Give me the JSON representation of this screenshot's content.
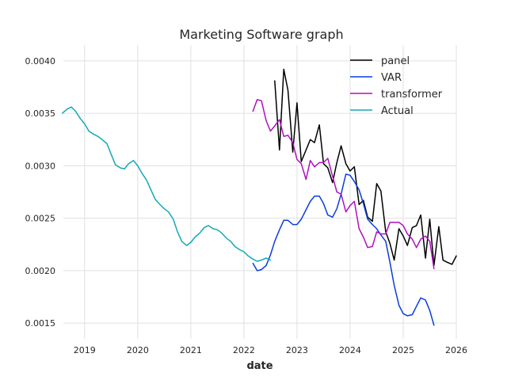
{
  "chart_data": {
    "type": "line",
    "title": "Marketing Software graph",
    "xlabel": "date",
    "ylabel": "",
    "xlim": [
      2018.6,
      2026.0
    ],
    "ylim": [
      0.00135,
      0.00415
    ],
    "xticks": [
      2019,
      2020,
      2021,
      2022,
      2023,
      2024,
      2025,
      2026
    ],
    "xtick_labels": [
      "2019",
      "2020",
      "2021",
      "2022",
      "2023",
      "2024",
      "2025",
      "2026"
    ],
    "yticks": [
      0.0015,
      0.002,
      0.0025,
      0.003,
      0.0035,
      0.004
    ],
    "ytick_labels": [
      "0.0015",
      "0.0020",
      "0.0025",
      "0.0030",
      "0.0035",
      "0.0040"
    ],
    "grid": true,
    "legend_position": "top-right",
    "series": [
      {
        "name": "panel",
        "color": "#000000",
        "x": [
          2022.58,
          2022.67,
          2022.75,
          2022.83,
          2022.92,
          2023.0,
          2023.08,
          2023.17,
          2023.25,
          2023.33,
          2023.42,
          2023.5,
          2023.58,
          2023.67,
          2023.75,
          2023.83,
          2023.92,
          2024.0,
          2024.08,
          2024.17,
          2024.25,
          2024.33,
          2024.42,
          2024.5,
          2024.58,
          2024.67,
          2024.75,
          2024.83,
          2024.92,
          2025.0,
          2025.08,
          2025.17,
          2025.25,
          2025.33,
          2025.42,
          2025.5,
          2025.58,
          2025.67,
          2025.75,
          2025.83,
          2025.92,
          2026.0
        ],
        "y": [
          0.00381,
          0.00315,
          0.00392,
          0.00372,
          0.00313,
          0.0036,
          0.00304,
          0.00315,
          0.00325,
          0.00322,
          0.00339,
          0.00302,
          0.00298,
          0.00284,
          0.00303,
          0.00319,
          0.00302,
          0.00295,
          0.00299,
          0.00263,
          0.00267,
          0.00251,
          0.00247,
          0.00283,
          0.00276,
          0.00237,
          0.00226,
          0.0021,
          0.0024,
          0.00233,
          0.00224,
          0.00241,
          0.00243,
          0.00253,
          0.00212,
          0.00249,
          0.00205,
          0.00242,
          0.0021,
          0.00208,
          0.00206,
          0.00214
        ]
      },
      {
        "name": "VAR",
        "color": "#0a3de0",
        "x": [
          2022.17,
          2022.25,
          2022.33,
          2022.42,
          2022.5,
          2022.58,
          2022.67,
          2022.75,
          2022.83,
          2022.92,
          2023.0,
          2023.08,
          2023.17,
          2023.25,
          2023.33,
          2023.42,
          2023.5,
          2023.58,
          2023.67,
          2023.75,
          2023.83,
          2023.92,
          2024.0,
          2024.08,
          2024.17,
          2024.25,
          2024.33,
          2024.42,
          2024.5,
          2024.58,
          2024.67,
          2024.75,
          2024.83,
          2024.92,
          2025.0,
          2025.08,
          2025.17,
          2025.25,
          2025.33,
          2025.42,
          2025.5,
          2025.58
        ],
        "y": [
          0.00207,
          0.002,
          0.00201,
          0.00205,
          0.00215,
          0.00228,
          0.00239,
          0.00248,
          0.00248,
          0.00244,
          0.00244,
          0.00249,
          0.00258,
          0.00266,
          0.00271,
          0.00271,
          0.00264,
          0.00253,
          0.00251,
          0.00259,
          0.00273,
          0.00292,
          0.00291,
          0.00285,
          0.00277,
          0.00264,
          0.00249,
          0.00244,
          0.0024,
          0.00234,
          0.00228,
          0.00208,
          0.00186,
          0.00167,
          0.00159,
          0.00157,
          0.00158,
          0.00166,
          0.00174,
          0.00172,
          0.00162,
          0.00148
        ]
      },
      {
        "name": "transformer",
        "color": "#b00fc0",
        "x": [
          2022.17,
          2022.25,
          2022.33,
          2022.42,
          2022.5,
          2022.58,
          2022.67,
          2022.75,
          2022.83,
          2022.92,
          2023.0,
          2023.08,
          2023.17,
          2023.25,
          2023.33,
          2023.42,
          2023.5,
          2023.58,
          2023.67,
          2023.75,
          2023.83,
          2023.92,
          2024.0,
          2024.08,
          2024.17,
          2024.25,
          2024.33,
          2024.42,
          2024.5,
          2024.58,
          2024.67,
          2024.75,
          2024.83,
          2024.92,
          2025.0,
          2025.08,
          2025.17,
          2025.25,
          2025.33,
          2025.42,
          2025.5,
          2025.58
        ],
        "y": [
          0.00352,
          0.00363,
          0.00362,
          0.00343,
          0.00333,
          0.00338,
          0.00344,
          0.00328,
          0.00329,
          0.00322,
          0.00306,
          0.00302,
          0.00287,
          0.00305,
          0.00299,
          0.00303,
          0.00303,
          0.00307,
          0.0029,
          0.00275,
          0.00273,
          0.00256,
          0.00262,
          0.00266,
          0.0024,
          0.00232,
          0.00222,
          0.00223,
          0.00237,
          0.00235,
          0.00235,
          0.00246,
          0.00246,
          0.00246,
          0.00243,
          0.00235,
          0.0023,
          0.00222,
          0.0023,
          0.00233,
          0.00228,
          0.00202
        ]
      },
      {
        "name": "Actual",
        "color": "#12a9b5",
        "x": [
          2018.58,
          2018.67,
          2018.75,
          2018.83,
          2018.92,
          2019.0,
          2019.08,
          2019.17,
          2019.25,
          2019.33,
          2019.42,
          2019.5,
          2019.58,
          2019.67,
          2019.75,
          2019.83,
          2019.92,
          2020.0,
          2020.08,
          2020.17,
          2020.25,
          2020.33,
          2020.42,
          2020.5,
          2020.58,
          2020.67,
          2020.75,
          2020.83,
          2020.92,
          2021.0,
          2021.08,
          2021.17,
          2021.25,
          2021.33,
          2021.42,
          2021.5,
          2021.58,
          2021.67,
          2021.75,
          2021.83,
          2021.92,
          2022.0,
          2022.08,
          2022.17,
          2022.25,
          2022.33,
          2022.42,
          2022.5
        ],
        "y": [
          0.0035,
          0.00354,
          0.00356,
          0.00352,
          0.00345,
          0.0034,
          0.00333,
          0.0033,
          0.00328,
          0.00325,
          0.00321,
          0.00311,
          0.00301,
          0.00298,
          0.00297,
          0.00302,
          0.00305,
          0.003,
          0.00293,
          0.00286,
          0.00277,
          0.00268,
          0.00263,
          0.00259,
          0.00256,
          0.00249,
          0.00237,
          0.00228,
          0.00224,
          0.00227,
          0.00232,
          0.00236,
          0.00241,
          0.00243,
          0.0024,
          0.00239,
          0.00236,
          0.00231,
          0.00228,
          0.00223,
          0.0022,
          0.00218,
          0.00214,
          0.00211,
          0.00209,
          0.0021,
          0.00212,
          0.0021
        ]
      }
    ]
  }
}
